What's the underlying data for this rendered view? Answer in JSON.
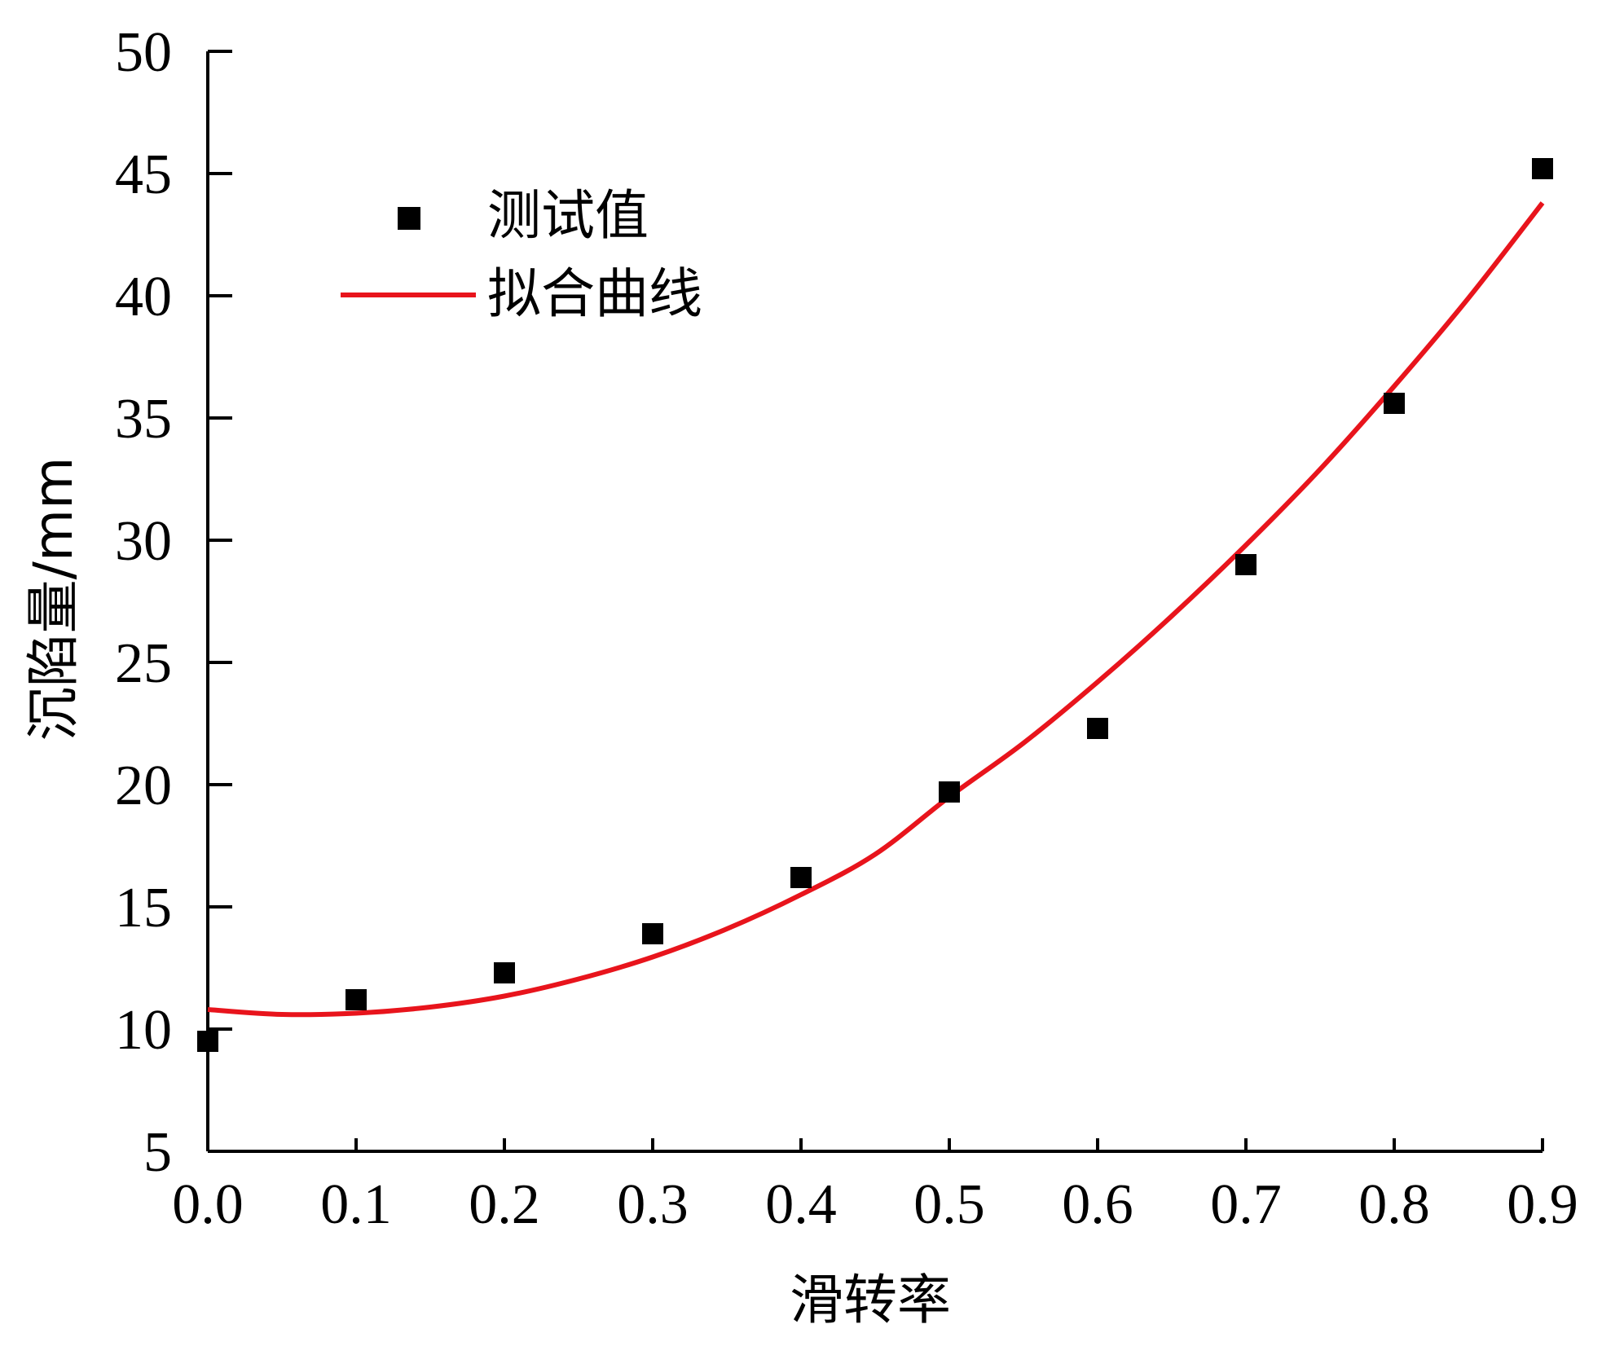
{
  "chart_data": {
    "type": "scatter",
    "xlabel": "滑转率",
    "ylabel": "沉陷量/mm",
    "xlim": [
      0.0,
      0.9
    ],
    "ylim": [
      5,
      50
    ],
    "x_ticks": [
      "0.0",
      "0.1",
      "0.2",
      "0.3",
      "0.4",
      "0.5",
      "0.6",
      "0.7",
      "0.8",
      "0.9"
    ],
    "y_ticks": [
      "5",
      "10",
      "15",
      "20",
      "25",
      "30",
      "35",
      "40",
      "45",
      "50"
    ],
    "grid": false,
    "legend_position": "top-left",
    "series": [
      {
        "name": "测试值",
        "kind": "scatter",
        "marker": "square",
        "color": "#000000",
        "x": [
          0.0,
          0.1,
          0.2,
          0.3,
          0.4,
          0.5,
          0.6,
          0.7,
          0.8,
          0.9
        ],
        "y": [
          9.5,
          11.2,
          12.3,
          13.9,
          16.2,
          19.7,
          22.3,
          29.0,
          35.6,
          45.2
        ]
      },
      {
        "name": "拟合曲线",
        "kind": "line",
        "color": "#e8141c",
        "x": [
          0.0,
          0.05,
          0.1,
          0.15,
          0.2,
          0.25,
          0.3,
          0.35,
          0.4,
          0.45,
          0.5,
          0.55,
          0.6,
          0.65,
          0.7,
          0.75,
          0.8,
          0.85,
          0.9
        ],
        "y": [
          10.8,
          10.6,
          10.65,
          10.9,
          11.35,
          12.05,
          12.95,
          14.1,
          15.5,
          17.15,
          19.5,
          21.7,
          24.2,
          26.9,
          29.8,
          32.9,
          36.3,
          39.9,
          43.8
        ]
      }
    ]
  }
}
